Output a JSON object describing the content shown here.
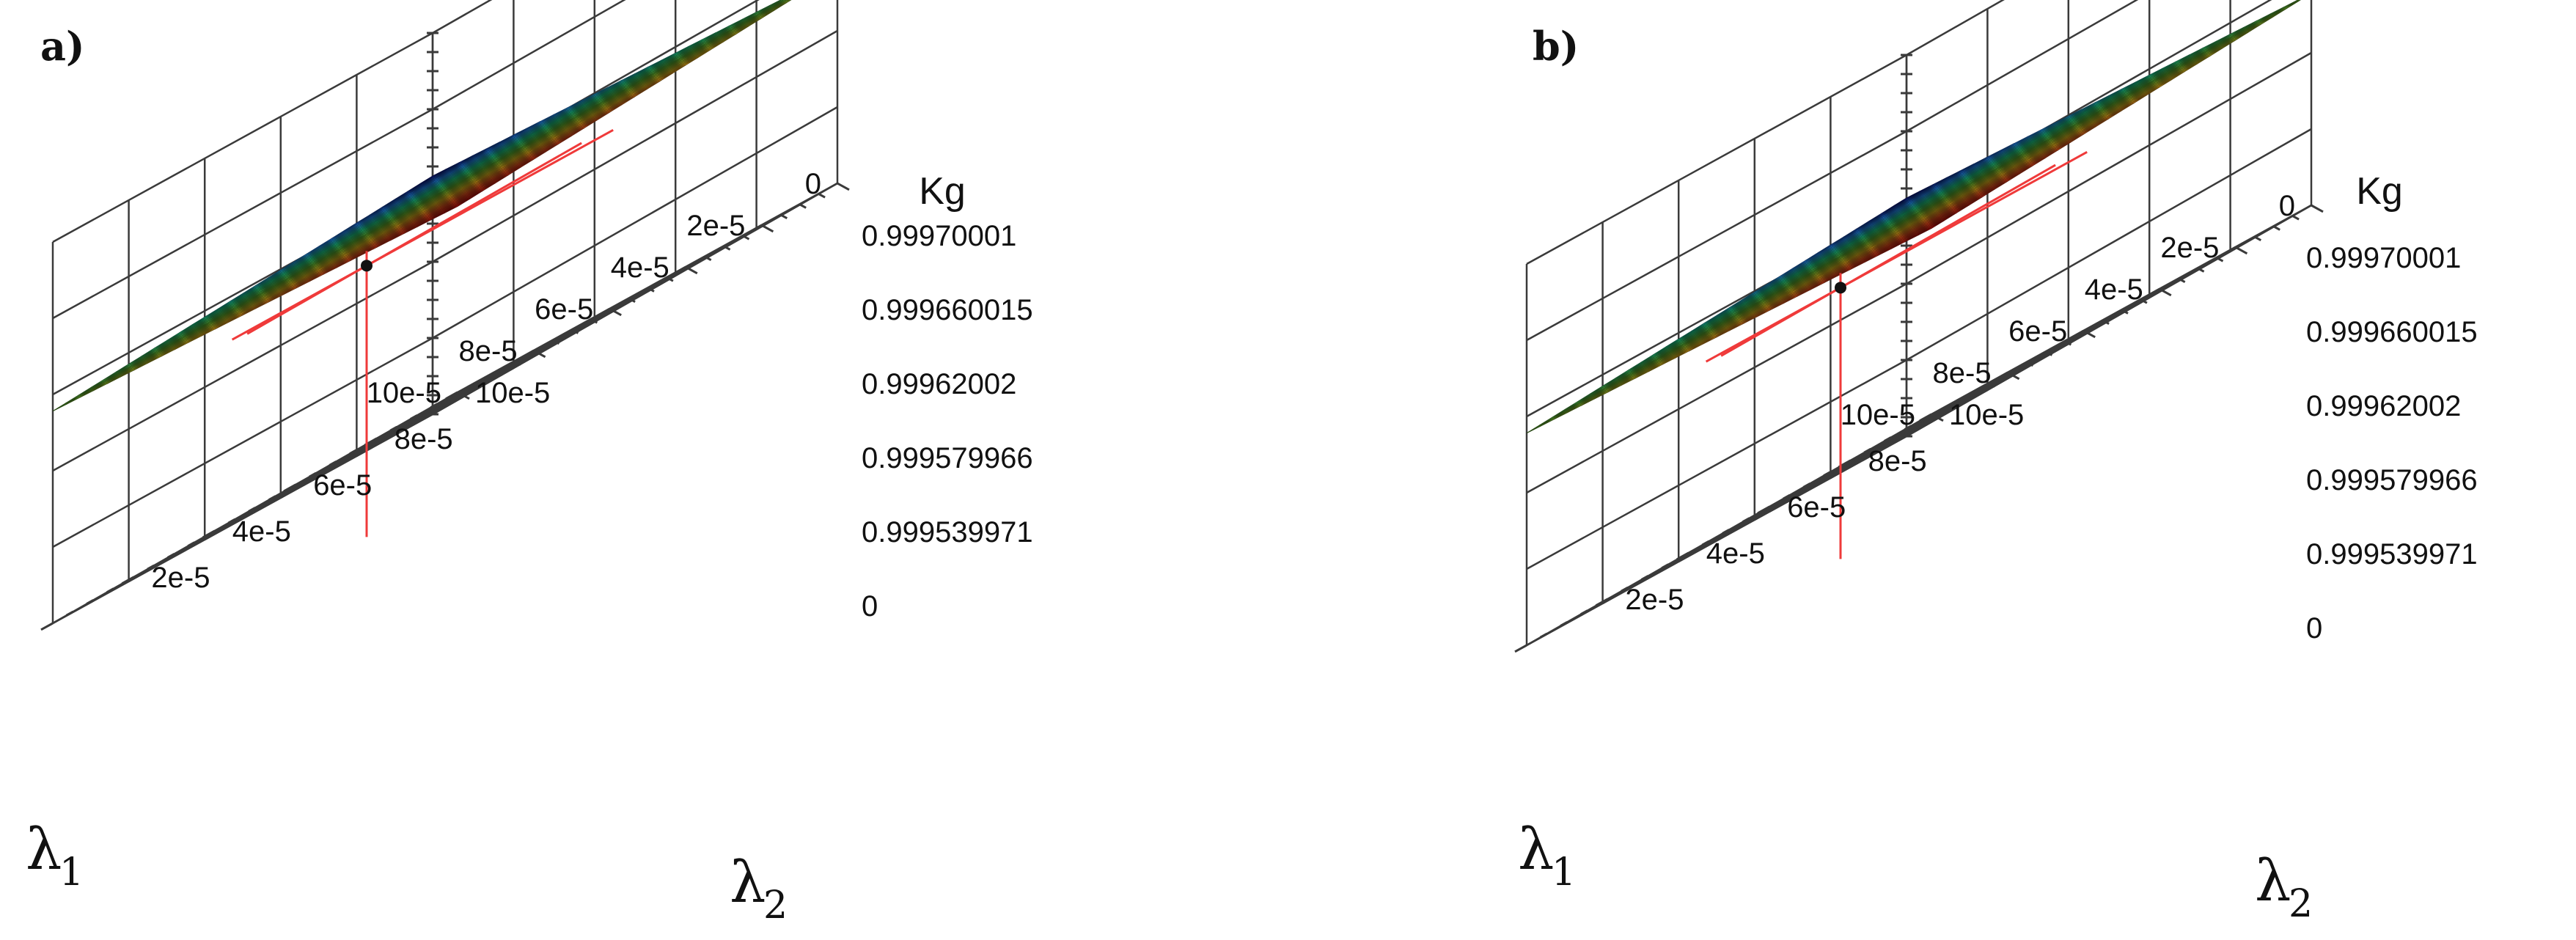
{
  "chart_data": [
    {
      "type": "surface",
      "panel_label": "a)",
      "z_title": "Kg",
      "z_ticks": [
        "0",
        "0.999539971",
        "0.999579966",
        "0.99962002",
        "0.999660015",
        "0.99970001"
      ],
      "x_label": "λ",
      "x_label_sub": "1",
      "x_ticks": [
        "0",
        "2e-5",
        "4e-5",
        "6e-5",
        "8e-5",
        "10e-5"
      ],
      "y_label": "λ",
      "y_label_sub": "2",
      "y_ticks": [
        "2e-5",
        "4e-5",
        "6e-5",
        "8e-5",
        "10e-5"
      ],
      "x_range": [
        0,
        0.0001
      ],
      "y_range": [
        0,
        0.0001
      ],
      "z_range_visible": [
        0.999539971,
        0.99970001
      ],
      "surface_corners": {
        "l1_0_l2_0": 0.99970001,
        "l1_max_l2_0": 0.999660015,
        "l1_0_l2_max": 0.999660015,
        "l1_max_l2_max": 0.99962002
      },
      "marked_point": {
        "l1": 6e-05,
        "l2": 4e-05,
        "Kg": 0.999579966
      },
      "colormap": [
        "#0a0a6e",
        "#1f7bd8",
        "#1bb87a",
        "#57a02a",
        "#c9a21a",
        "#d0461a",
        "#a80d0d"
      ],
      "marker_color": "#ef3a3a",
      "grid": true
    },
    {
      "type": "surface",
      "panel_label": "b)",
      "z_title": "Kg",
      "z_ticks": [
        "0",
        "0.999539971",
        "0.999579966",
        "0.99962002",
        "0.999660015",
        "0.99970001"
      ],
      "x_label": "λ",
      "x_label_sub": "1",
      "x_ticks": [
        "0",
        "2e-5",
        "4e-5",
        "6e-5",
        "8e-5",
        "10e-5"
      ],
      "y_label": "λ",
      "y_label_sub": "2",
      "y_ticks": [
        "2e-5",
        "4e-5",
        "6e-5",
        "8e-5",
        "10e-5"
      ],
      "x_range": [
        0,
        0.0001
      ],
      "y_range": [
        0,
        0.0001
      ],
      "z_range_visible": [
        0.999539971,
        0.99970001
      ],
      "surface_corners": {
        "l1_0_l2_0": 0.99970001,
        "l1_max_l2_0": 0.999660015,
        "l1_0_l2_max": 0.999660015,
        "l1_max_l2_max": 0.99962002
      },
      "marked_point": {
        "l1": 6e-05,
        "l2": 4e-05,
        "Kg": 0.999579966
      },
      "colormap": [
        "#0a0a6e",
        "#1f7bd8",
        "#1bb87a",
        "#57a02a",
        "#c9a21a",
        "#d0461a",
        "#a80d0d"
      ],
      "marker_color": "#ef3a3a",
      "grid": true
    }
  ]
}
